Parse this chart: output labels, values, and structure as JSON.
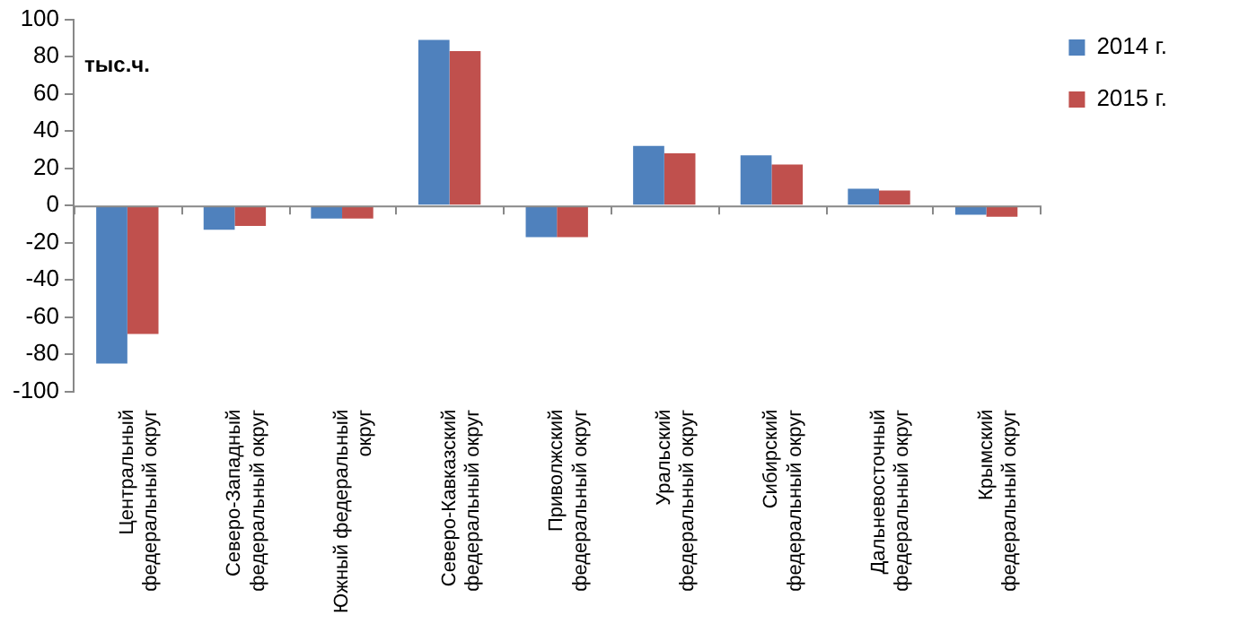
{
  "chart_data": {
    "type": "bar",
    "ylabel": "тыс.ч.",
    "categories": [
      "Центральный федеральный округ",
      "Северо-Западный федеральный округ",
      "Южный федеральный округ",
      "Северо-Кавказский федеральный округ",
      "Приволжский федеральный округ",
      "Уральский федеральный округ",
      "Сибирский федеральный округ",
      "Дальневосточный федеральный округ",
      "Крымский федеральный округ"
    ],
    "series": [
      {
        "name": "2014 г.",
        "color": "#4f81bd",
        "values": [
          -85,
          -13,
          -7,
          89,
          -17,
          32,
          27,
          9,
          -5
        ]
      },
      {
        "name": "2015 г.",
        "color": "#c0504d",
        "values": [
          -69,
          -11,
          -7,
          83,
          -17,
          28,
          22,
          8,
          -6
        ]
      }
    ],
    "ylim": [
      -100,
      100
    ],
    "yticks": [
      -100,
      -80,
      -60,
      -40,
      -20,
      0,
      20,
      40,
      60,
      80,
      100
    ],
    "legend": "top right"
  }
}
